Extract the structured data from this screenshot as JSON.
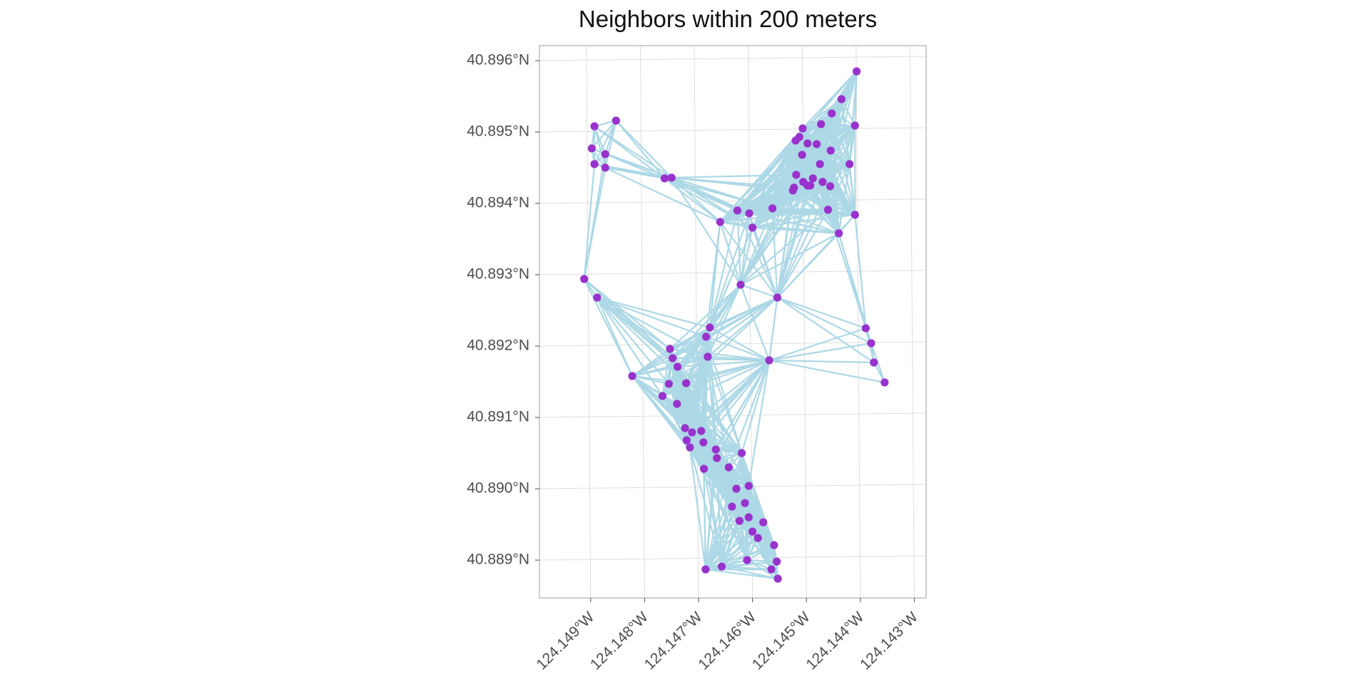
{
  "chart_data": {
    "type": "scatter",
    "title": "Neighbors within 200 meters",
    "xlabel": "",
    "ylabel": "",
    "xlim": [
      -124.14995,
      -124.14278
    ],
    "ylim": [
      40.88847,
      40.89621
    ],
    "x_ticks": [
      {
        "value": -124.149,
        "label": "124.149°W"
      },
      {
        "value": -124.148,
        "label": "124.148°W"
      },
      {
        "value": -124.147,
        "label": "124.147°W"
      },
      {
        "value": -124.146,
        "label": "124.146°W"
      },
      {
        "value": -124.145,
        "label": "124.145°W"
      },
      {
        "value": -124.144,
        "label": "124.144°W"
      },
      {
        "value": -124.143,
        "label": "124.143°W"
      }
    ],
    "y_ticks": [
      {
        "value": 40.896,
        "label": "40.896°N"
      },
      {
        "value": 40.895,
        "label": "40.895°N"
      },
      {
        "value": 40.894,
        "label": "40.894°N"
      },
      {
        "value": 40.893,
        "label": "40.893°N"
      },
      {
        "value": 40.892,
        "label": "40.892°N"
      },
      {
        "value": 40.891,
        "label": "40.891°N"
      },
      {
        "value": 40.89,
        "label": "40.890°N"
      },
      {
        "value": 40.889,
        "label": "40.889°N"
      }
    ],
    "grid": true,
    "point_color": "#9932CC",
    "edge_color": "#ADD8E6",
    "neighbor_distance_m": 200,
    "points": [
      [
        -124.14893,
        40.89508
      ],
      [
        -124.14853,
        40.89516
      ],
      [
        -124.14898,
        40.89477
      ],
      [
        -124.14873,
        40.89469
      ],
      [
        -124.14893,
        40.89455
      ],
      [
        -124.14873,
        40.8945
      ],
      [
        -124.14763,
        40.89435
      ],
      [
        -124.1475,
        40.89436
      ],
      [
        -124.14628,
        40.8939
      ],
      [
        -124.14606,
        40.89386
      ],
      [
        -124.1466,
        40.89374
      ],
      [
        -124.146,
        40.89366
      ],
      [
        -124.14563,
        40.89393
      ],
      [
        -124.14473,
        40.89511
      ],
      [
        -124.14498,
        40.89484
      ],
      [
        -124.14453,
        40.89526
      ],
      [
        -124.14507,
        40.89505
      ],
      [
        -124.14513,
        40.89493
      ],
      [
        -124.14481,
        40.89483
      ],
      [
        -124.1452,
        40.89488
      ],
      [
        -124.14508,
        40.89468
      ],
      [
        -124.14455,
        40.89474
      ],
      [
        -124.14519,
        40.8944
      ],
      [
        -124.14475,
        40.89455
      ],
      [
        -124.14488,
        40.89435
      ],
      [
        -124.14506,
        40.8943
      ],
      [
        -124.14493,
        40.89425
      ],
      [
        -124.1447,
        40.8943
      ],
      [
        -124.14456,
        40.89424
      ],
      [
        -124.14498,
        40.89425
      ],
      [
        -124.14407,
        40.89585
      ],
      [
        -124.14435,
        40.89546
      ],
      [
        -124.1441,
        40.89509
      ],
      [
        -124.1442,
        40.89455
      ],
      [
        -124.1446,
        40.89391
      ],
      [
        -124.1444,
        40.89358
      ],
      [
        -124.1441,
        40.89384
      ],
      [
        -124.14523,
        40.89422
      ],
      [
        -124.14525,
        40.89418
      ],
      [
        -124.14912,
        40.89294
      ],
      [
        -124.14888,
        40.89268
      ],
      [
        -124.14622,
        40.89286
      ],
      [
        -124.14554,
        40.89268
      ],
      [
        -124.1439,
        40.89225
      ],
      [
        -124.1438,
        40.89204
      ],
      [
        -124.14375,
        40.89177
      ],
      [
        -124.14355,
        40.89149
      ],
      [
        -124.14679,
        40.89226
      ],
      [
        -124.14686,
        40.89213
      ],
      [
        -124.14683,
        40.89185
      ],
      [
        -124.14569,
        40.8918
      ],
      [
        -124.14753,
        40.89196
      ],
      [
        -124.14748,
        40.89183
      ],
      [
        -124.14739,
        40.89171
      ],
      [
        -124.14823,
        40.89158
      ],
      [
        -124.14767,
        40.8913
      ],
      [
        -124.14723,
        40.89148
      ],
      [
        -124.14755,
        40.89147
      ],
      [
        -124.1474,
        40.89119
      ],
      [
        -124.14725,
        40.89085
      ],
      [
        -124.14712,
        40.89079
      ],
      [
        -124.14695,
        40.89081
      ],
      [
        -124.14722,
        40.89068
      ],
      [
        -124.14716,
        40.89058
      ],
      [
        -124.14691,
        40.89065
      ],
      [
        -124.14668,
        40.89055
      ],
      [
        -124.1462,
        40.8905
      ],
      [
        -124.14666,
        40.89043
      ],
      [
        -124.14644,
        40.8903
      ],
      [
        -124.1469,
        40.89028
      ],
      [
        -124.1463,
        40.89
      ],
      [
        -124.14607,
        40.89004
      ],
      [
        -124.14614,
        40.8898
      ],
      [
        -124.14638,
        40.88975
      ],
      [
        -124.14607,
        40.8896
      ],
      [
        -124.14624,
        40.88955
      ],
      [
        -124.146,
        40.8894
      ],
      [
        -124.1458,
        40.88953
      ],
      [
        -124.1459,
        40.88931
      ],
      [
        -124.14555,
        40.88898
      ],
      [
        -124.14565,
        40.88887
      ],
      [
        -124.1461,
        40.889
      ],
      [
        -124.14657,
        40.88891
      ],
      [
        -124.14687,
        40.88887
      ],
      [
        -124.1456,
        40.88921
      ],
      [
        -124.14553,
        40.88874
      ]
    ]
  }
}
